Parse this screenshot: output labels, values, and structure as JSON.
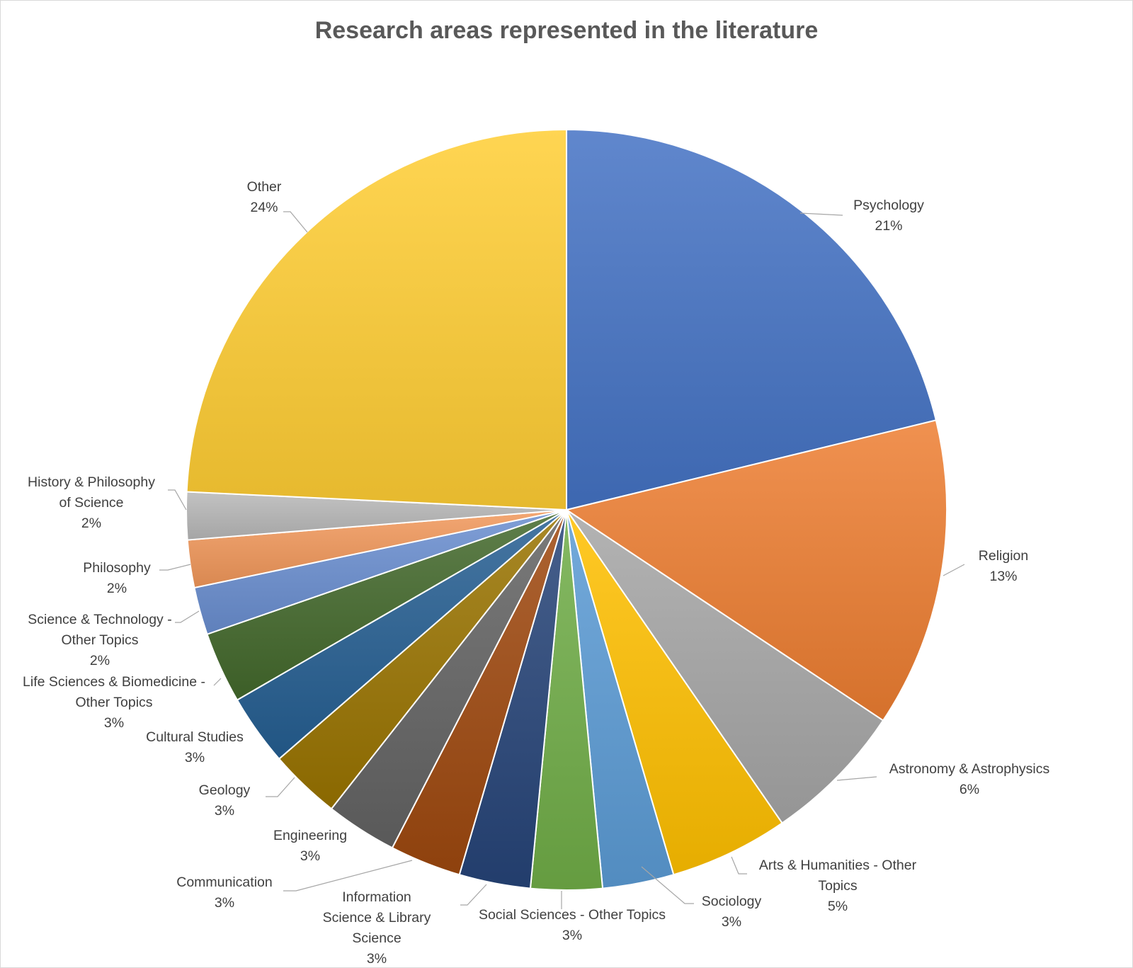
{
  "chart_data": {
    "type": "pie",
    "title": "Research areas represented in the literature",
    "slices": [
      {
        "label": "Psychology",
        "value": 21,
        "pct_label": "21%",
        "color": "#4472c4"
      },
      {
        "label": "Religion",
        "value": 13,
        "pct_label": "13%",
        "color": "#ed7d31"
      },
      {
        "label": "Astronomy & Astrophysics",
        "value": 6,
        "pct_label": "6%",
        "color": "#a5a5a5"
      },
      {
        "label": "Arts & Humanities - Other Topics",
        "value": 5,
        "pct_label": "5%",
        "color": "#ffc000"
      },
      {
        "label": "Sociology",
        "value": 3,
        "pct_label": "3%",
        "color": "#5b9bd5"
      },
      {
        "label": "Social Sciences - Other Topics",
        "value": 3,
        "pct_label": "3%",
        "color": "#70ad47"
      },
      {
        "label": "Information Science & Library Science",
        "value": 3,
        "pct_label": "3%",
        "color": "#264478"
      },
      {
        "label": "Communication",
        "value": 3,
        "pct_label": "3%",
        "color": "#9e480e"
      },
      {
        "label": "Engineering",
        "value": 3,
        "pct_label": "3%",
        "color": "#636363"
      },
      {
        "label": "Geology",
        "value": 3,
        "pct_label": "3%",
        "color": "#997300"
      },
      {
        "label": "Cultural Studies",
        "value": 3,
        "pct_label": "3%",
        "color": "#255e91"
      },
      {
        "label": "Life Sciences & Biomedicine - Other Topics",
        "value": 3,
        "pct_label": "3%",
        "color": "#43682b"
      },
      {
        "label": "Science & Technology - Other Topics",
        "value": 2,
        "pct_label": "2%",
        "color": "#698ed0"
      },
      {
        "label": "Philosophy",
        "value": 2,
        "pct_label": "2%",
        "color": "#f1975a"
      },
      {
        "label": "History & Philosophy of Science",
        "value": 2,
        "pct_label": "2%",
        "color": "#b7b7b7"
      },
      {
        "label": "Other",
        "value": 24,
        "pct_label": "24%",
        "color": "#ffcd33"
      }
    ],
    "legend": "none",
    "data_labels": "outside with leader lines"
  }
}
